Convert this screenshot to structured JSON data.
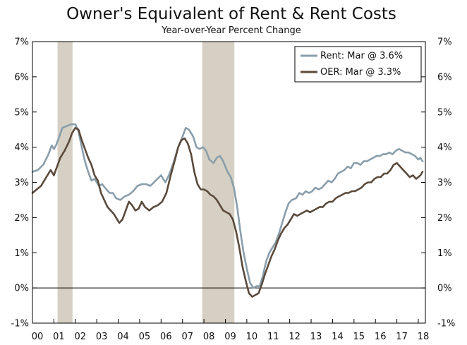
{
  "chart_data": {
    "type": "line",
    "title": "Owner's Equivalent of Rent & Rent Costs",
    "subtitle": "Year-over-Year Percent Change",
    "xlabel": "",
    "ylabel": "",
    "xlim": [
      2000,
      2018.33
    ],
    "ylim": [
      -1,
      7
    ],
    "x_ticks": [
      {
        "x": 2000,
        "label": "00"
      },
      {
        "x": 2001,
        "label": "01"
      },
      {
        "x": 2002,
        "label": "02"
      },
      {
        "x": 2003,
        "label": "03"
      },
      {
        "x": 2004,
        "label": "04"
      },
      {
        "x": 2005,
        "label": "05"
      },
      {
        "x": 2006,
        "label": "06"
      },
      {
        "x": 2007,
        "label": "07"
      },
      {
        "x": 2008,
        "label": "08"
      },
      {
        "x": 2009,
        "label": "09"
      },
      {
        "x": 2010,
        "label": "10"
      },
      {
        "x": 2011,
        "label": "11"
      },
      {
        "x": 2012,
        "label": "12"
      },
      {
        "x": 2013,
        "label": "13"
      },
      {
        "x": 2014,
        "label": "14"
      },
      {
        "x": 2015,
        "label": "15"
      },
      {
        "x": 2016,
        "label": "16"
      },
      {
        "x": 2017,
        "label": "17"
      },
      {
        "x": 2018,
        "label": "18"
      }
    ],
    "y_ticks": [
      {
        "y": 7,
        "label": "7%"
      },
      {
        "y": 6,
        "label": "6%"
      },
      {
        "y": 5,
        "label": "5%"
      },
      {
        "y": 4,
        "label": "4%"
      },
      {
        "y": 3,
        "label": "3%"
      },
      {
        "y": 2,
        "label": "2%"
      },
      {
        "y": 1,
        "label": "1%"
      },
      {
        "y": 0,
        "label": "0%"
      },
      {
        "y": -1,
        "label": "-1%"
      }
    ],
    "recessions": [
      {
        "start": 2001.17,
        "end": 2001.87
      },
      {
        "start": 2007.92,
        "end": 2009.42
      }
    ],
    "legend_position": "top-right",
    "series": [
      {
        "name": "Rent: Mar @ 3.6%",
        "color": "#8a9eab",
        "points": [
          [
            2000.0,
            3.3
          ],
          [
            2000.25,
            3.35
          ],
          [
            2000.5,
            3.5
          ],
          [
            2000.75,
            3.8
          ],
          [
            2000.9,
            4.05
          ],
          [
            2001.0,
            3.95
          ],
          [
            2001.1,
            4.05
          ],
          [
            2001.25,
            4.3
          ],
          [
            2001.4,
            4.55
          ],
          [
            2001.6,
            4.6
          ],
          [
            2001.8,
            4.65
          ],
          [
            2002.0,
            4.65
          ],
          [
            2002.15,
            4.45
          ],
          [
            2002.3,
            4.0
          ],
          [
            2002.45,
            3.6
          ],
          [
            2002.6,
            3.3
          ],
          [
            2002.75,
            3.05
          ],
          [
            2002.9,
            3.1
          ],
          [
            2003.1,
            2.9
          ],
          [
            2003.25,
            2.95
          ],
          [
            2003.45,
            2.8
          ],
          [
            2003.6,
            2.7
          ],
          [
            2003.75,
            2.7
          ],
          [
            2003.9,
            2.55
          ],
          [
            2004.1,
            2.5
          ],
          [
            2004.3,
            2.6
          ],
          [
            2004.5,
            2.65
          ],
          [
            2004.7,
            2.75
          ],
          [
            2004.9,
            2.9
          ],
          [
            2005.1,
            2.95
          ],
          [
            2005.3,
            2.95
          ],
          [
            2005.5,
            2.9
          ],
          [
            2005.75,
            3.05
          ],
          [
            2006.0,
            3.2
          ],
          [
            2006.2,
            3.0
          ],
          [
            2006.4,
            3.25
          ],
          [
            2006.6,
            3.6
          ],
          [
            2006.8,
            4.0
          ],
          [
            2007.0,
            4.3
          ],
          [
            2007.15,
            4.55
          ],
          [
            2007.3,
            4.5
          ],
          [
            2007.5,
            4.3
          ],
          [
            2007.65,
            4.0
          ],
          [
            2007.8,
            3.95
          ],
          [
            2007.95,
            4.0
          ],
          [
            2008.1,
            3.9
          ],
          [
            2008.25,
            3.65
          ],
          [
            2008.45,
            3.55
          ],
          [
            2008.6,
            3.7
          ],
          [
            2008.75,
            3.75
          ],
          [
            2008.9,
            3.6
          ],
          [
            2009.1,
            3.3
          ],
          [
            2009.25,
            3.15
          ],
          [
            2009.4,
            2.85
          ],
          [
            2009.55,
            2.3
          ],
          [
            2009.7,
            1.6
          ],
          [
            2009.85,
            1.0
          ],
          [
            2010.0,
            0.55
          ],
          [
            2010.15,
            0.15
          ],
          [
            2010.3,
            0.0
          ],
          [
            2010.45,
            0.05
          ],
          [
            2010.6,
            0.05
          ],
          [
            2010.75,
            0.35
          ],
          [
            2010.9,
            0.75
          ],
          [
            2011.05,
            1.0
          ],
          [
            2011.2,
            1.15
          ],
          [
            2011.35,
            1.3
          ],
          [
            2011.5,
            1.55
          ],
          [
            2011.65,
            1.85
          ],
          [
            2011.8,
            2.15
          ],
          [
            2011.95,
            2.4
          ],
          [
            2012.1,
            2.5
          ],
          [
            2012.3,
            2.55
          ],
          [
            2012.45,
            2.7
          ],
          [
            2012.6,
            2.65
          ],
          [
            2012.75,
            2.75
          ],
          [
            2012.9,
            2.7
          ],
          [
            2013.05,
            2.75
          ],
          [
            2013.2,
            2.85
          ],
          [
            2013.35,
            2.8
          ],
          [
            2013.5,
            2.85
          ],
          [
            2013.65,
            2.95
          ],
          [
            2013.8,
            3.05
          ],
          [
            2013.95,
            3.0
          ],
          [
            2014.1,
            3.1
          ],
          [
            2014.25,
            3.25
          ],
          [
            2014.4,
            3.3
          ],
          [
            2014.55,
            3.35
          ],
          [
            2014.7,
            3.45
          ],
          [
            2014.85,
            3.4
          ],
          [
            2015.0,
            3.55
          ],
          [
            2015.15,
            3.55
          ],
          [
            2015.3,
            3.5
          ],
          [
            2015.45,
            3.6
          ],
          [
            2015.6,
            3.6
          ],
          [
            2015.75,
            3.65
          ],
          [
            2015.9,
            3.7
          ],
          [
            2016.05,
            3.75
          ],
          [
            2016.2,
            3.75
          ],
          [
            2016.35,
            3.8
          ],
          [
            2016.5,
            3.8
          ],
          [
            2016.65,
            3.85
          ],
          [
            2016.8,
            3.8
          ],
          [
            2016.95,
            3.9
          ],
          [
            2017.1,
            3.95
          ],
          [
            2017.25,
            3.9
          ],
          [
            2017.4,
            3.85
          ],
          [
            2017.55,
            3.85
          ],
          [
            2017.7,
            3.8
          ],
          [
            2017.85,
            3.75
          ],
          [
            2018.0,
            3.65
          ],
          [
            2018.1,
            3.7
          ],
          [
            2018.2,
            3.6
          ]
        ]
      },
      {
        "name": "OER: Mar @ 3.3%",
        "color": "#5a4a3c",
        "points": [
          [
            2000.0,
            2.7
          ],
          [
            2000.2,
            2.8
          ],
          [
            2000.4,
            2.9
          ],
          [
            2000.6,
            3.1
          ],
          [
            2000.85,
            3.35
          ],
          [
            2001.0,
            3.2
          ],
          [
            2001.15,
            3.45
          ],
          [
            2001.3,
            3.7
          ],
          [
            2001.5,
            3.9
          ],
          [
            2001.7,
            4.15
          ],
          [
            2001.85,
            4.4
          ],
          [
            2002.0,
            4.55
          ],
          [
            2002.15,
            4.5
          ],
          [
            2002.3,
            4.2
          ],
          [
            2002.45,
            3.95
          ],
          [
            2002.6,
            3.7
          ],
          [
            2002.75,
            3.5
          ],
          [
            2002.9,
            3.2
          ],
          [
            2003.05,
            3.05
          ],
          [
            2003.2,
            2.7
          ],
          [
            2003.35,
            2.5
          ],
          [
            2003.5,
            2.3
          ],
          [
            2003.65,
            2.2
          ],
          [
            2003.8,
            2.1
          ],
          [
            2003.95,
            1.95
          ],
          [
            2004.05,
            1.85
          ],
          [
            2004.2,
            1.95
          ],
          [
            2004.35,
            2.2
          ],
          [
            2004.5,
            2.45
          ],
          [
            2004.65,
            2.35
          ],
          [
            2004.8,
            2.2
          ],
          [
            2004.95,
            2.25
          ],
          [
            2005.1,
            2.45
          ],
          [
            2005.25,
            2.3
          ],
          [
            2005.45,
            2.2
          ],
          [
            2005.65,
            2.3
          ],
          [
            2005.85,
            2.35
          ],
          [
            2006.05,
            2.45
          ],
          [
            2006.25,
            2.7
          ],
          [
            2006.45,
            3.2
          ],
          [
            2006.65,
            3.65
          ],
          [
            2006.8,
            4.0
          ],
          [
            2006.95,
            4.2
          ],
          [
            2007.1,
            4.25
          ],
          [
            2007.25,
            4.1
          ],
          [
            2007.4,
            3.8
          ],
          [
            2007.55,
            3.3
          ],
          [
            2007.7,
            2.95
          ],
          [
            2007.85,
            2.8
          ],
          [
            2008.0,
            2.8
          ],
          [
            2008.15,
            2.75
          ],
          [
            2008.3,
            2.65
          ],
          [
            2008.45,
            2.6
          ],
          [
            2008.6,
            2.5
          ],
          [
            2008.75,
            2.35
          ],
          [
            2008.9,
            2.2
          ],
          [
            2009.05,
            2.15
          ],
          [
            2009.2,
            2.1
          ],
          [
            2009.35,
            1.95
          ],
          [
            2009.5,
            1.6
          ],
          [
            2009.65,
            1.15
          ],
          [
            2009.8,
            0.6
          ],
          [
            2009.95,
            0.2
          ],
          [
            2010.1,
            -0.15
          ],
          [
            2010.25,
            -0.25
          ],
          [
            2010.4,
            -0.2
          ],
          [
            2010.55,
            -0.15
          ],
          [
            2010.7,
            0.1
          ],
          [
            2010.85,
            0.4
          ],
          [
            2011.0,
            0.65
          ],
          [
            2011.15,
            0.9
          ],
          [
            2011.3,
            1.1
          ],
          [
            2011.45,
            1.35
          ],
          [
            2011.6,
            1.55
          ],
          [
            2011.75,
            1.7
          ],
          [
            2011.9,
            1.8
          ],
          [
            2012.05,
            1.95
          ],
          [
            2012.2,
            2.1
          ],
          [
            2012.35,
            2.05
          ],
          [
            2012.5,
            2.1
          ],
          [
            2012.65,
            2.15
          ],
          [
            2012.8,
            2.2
          ],
          [
            2012.95,
            2.15
          ],
          [
            2013.1,
            2.2
          ],
          [
            2013.25,
            2.25
          ],
          [
            2013.4,
            2.3
          ],
          [
            2013.55,
            2.3
          ],
          [
            2013.7,
            2.4
          ],
          [
            2013.85,
            2.45
          ],
          [
            2014.0,
            2.45
          ],
          [
            2014.15,
            2.55
          ],
          [
            2014.3,
            2.6
          ],
          [
            2014.45,
            2.65
          ],
          [
            2014.6,
            2.7
          ],
          [
            2014.75,
            2.7
          ],
          [
            2014.9,
            2.75
          ],
          [
            2015.05,
            2.75
          ],
          [
            2015.2,
            2.8
          ],
          [
            2015.35,
            2.85
          ],
          [
            2015.5,
            2.95
          ],
          [
            2015.65,
            3.0
          ],
          [
            2015.8,
            3.0
          ],
          [
            2015.95,
            3.1
          ],
          [
            2016.1,
            3.15
          ],
          [
            2016.25,
            3.15
          ],
          [
            2016.4,
            3.25
          ],
          [
            2016.55,
            3.25
          ],
          [
            2016.7,
            3.35
          ],
          [
            2016.85,
            3.5
          ],
          [
            2017.0,
            3.55
          ],
          [
            2017.15,
            3.45
          ],
          [
            2017.3,
            3.35
          ],
          [
            2017.45,
            3.25
          ],
          [
            2017.6,
            3.15
          ],
          [
            2017.75,
            3.2
          ],
          [
            2017.9,
            3.1
          ],
          [
            2018.0,
            3.15
          ],
          [
            2018.1,
            3.2
          ],
          [
            2018.2,
            3.3
          ]
        ]
      }
    ]
  }
}
